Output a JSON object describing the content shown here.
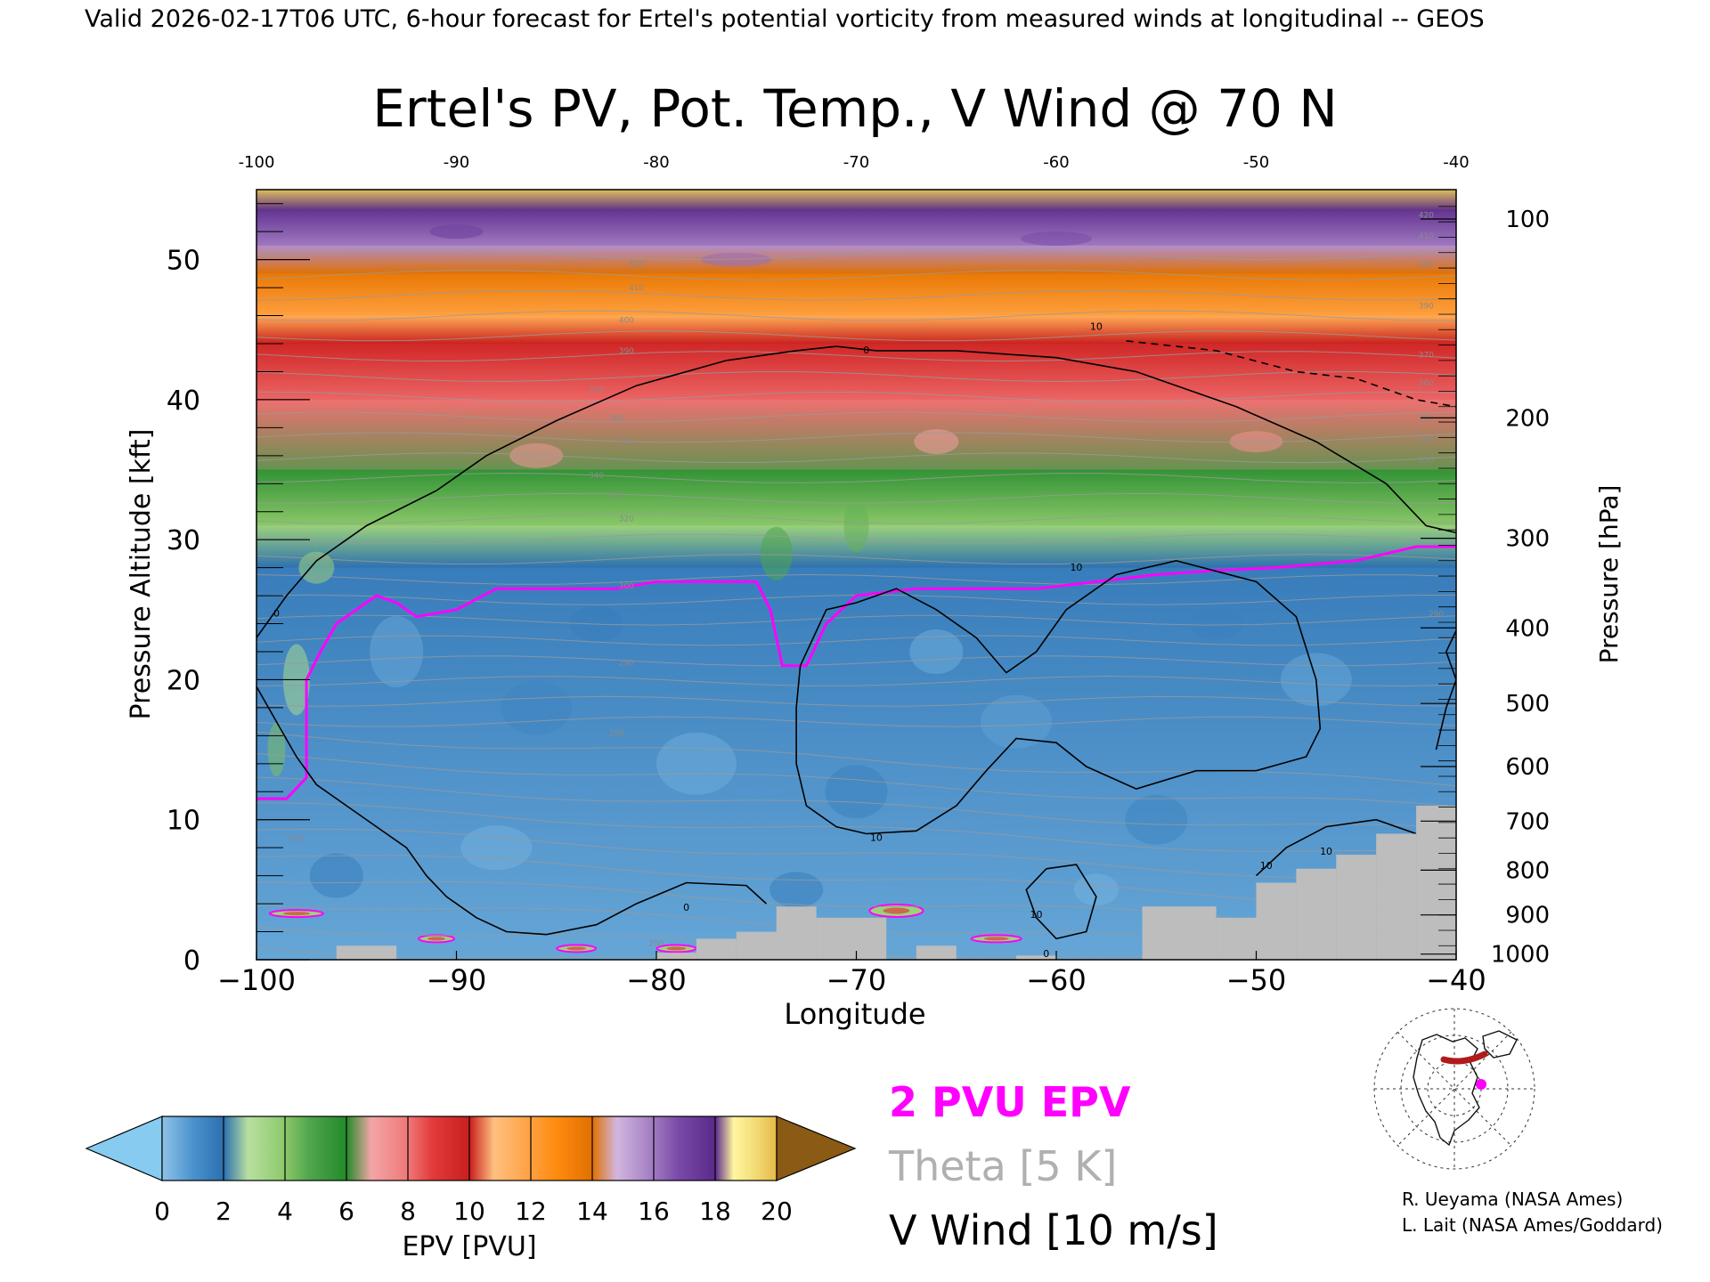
{
  "header": {
    "valid_line": "Valid 2026-02-17T06 UTC, 6-hour forecast for Ertel's potential vorticity from measured winds at longitudinal -- GEOS"
  },
  "chart_data": {
    "type": "heatmap",
    "title": "Ertel's PV, Pot. Temp., V Wind @ 70 N",
    "xlabel": "Longitude",
    "ylabel_left": "Pressure Altitude [kft]",
    "ylabel_right": "Pressure [hPa]",
    "xlim": [
      -100,
      -40
    ],
    "ylim": [
      0,
      55
    ],
    "x_ticks": [
      "-100",
      "-90",
      "-80",
      "-70",
      "-60",
      "-50",
      "-40"
    ],
    "x_ticks_bottom": [
      "−100",
      "−90",
      "−80",
      "−70",
      "−60",
      "−50",
      "−40"
    ],
    "y_ticks": [
      "0",
      "10",
      "20",
      "30",
      "40",
      "50"
    ],
    "pressure_ticks": [
      {
        "label": "100",
        "kft": 52.9
      },
      {
        "label": "200",
        "kft": 38.7
      },
      {
        "label": "300",
        "kft": 30.1
      },
      {
        "label": "400",
        "kft": 23.7
      },
      {
        "label": "500",
        "kft": 18.3
      },
      {
        "label": "600",
        "kft": 13.8
      },
      {
        "label": "700",
        "kft": 9.9
      },
      {
        "label": "800",
        "kft": 6.4
      },
      {
        "label": "900",
        "kft": 3.2
      },
      {
        "label": "1000",
        "kft": 0.4
      }
    ],
    "epv_bands": [
      {
        "kft_top": 55,
        "kft_bot": 53.5,
        "epv": 19
      },
      {
        "kft_top": 53.5,
        "kft_bot": 51,
        "epv": 17
      },
      {
        "kft_top": 51,
        "kft_bot": 49,
        "epv": 15
      },
      {
        "kft_top": 49,
        "kft_bot": 46,
        "epv": 13
      },
      {
        "kft_top": 46,
        "kft_bot": 44,
        "epv": 11
      },
      {
        "kft_top": 44,
        "kft_bot": 40,
        "epv": 9
      },
      {
        "kft_top": 40,
        "kft_bot": 35,
        "epv": 7.5
      },
      {
        "kft_top": 35,
        "kft_bot": 31,
        "epv": 5
      },
      {
        "kft_top": 31,
        "kft_bot": 28,
        "epv": 3
      },
      {
        "kft_top": 28,
        "kft_bot": 0,
        "epv": 1
      }
    ],
    "two_pvu_line": [
      [
        -100,
        11.5
      ],
      [
        -98.5,
        11.5
      ],
      [
        -97.5,
        13
      ],
      [
        -97.5,
        20
      ],
      [
        -96.8,
        22
      ],
      [
        -96,
        24
      ],
      [
        -94,
        26
      ],
      [
        -93,
        25.5
      ],
      [
        -92,
        24.5
      ],
      [
        -90,
        25
      ],
      [
        -88,
        26.5
      ],
      [
        -85,
        26.5
      ],
      [
        -82,
        26.5
      ],
      [
        -80,
        27
      ],
      [
        -78,
        27
      ],
      [
        -75,
        27
      ],
      [
        -74.3,
        25
      ],
      [
        -73.7,
        21
      ],
      [
        -72.5,
        21
      ],
      [
        -71.5,
        24
      ],
      [
        -70,
        26
      ],
      [
        -67,
        26.5
      ],
      [
        -65,
        26.5
      ],
      [
        -63,
        26.5
      ],
      [
        -61,
        26.5
      ],
      [
        -58,
        27
      ],
      [
        -55,
        27.5
      ],
      [
        -52,
        27.8
      ],
      [
        -49,
        28
      ],
      [
        -45,
        28.5
      ],
      [
        -42,
        29.5
      ],
      [
        -40,
        29.5
      ]
    ],
    "theta_labels": [
      {
        "label": "420",
        "x": -81,
        "kft": 49.5
      },
      {
        "label": "410",
        "x": -81,
        "kft": 47.8
      },
      {
        "label": "400",
        "x": -81.5,
        "kft": 45.5
      },
      {
        "label": "390",
        "x": -81.5,
        "kft": 43.3
      },
      {
        "label": "370",
        "x": -83,
        "kft": 40.5
      },
      {
        "label": "360",
        "x": -82,
        "kft": 38.5
      },
      {
        "label": "350",
        "x": -81.5,
        "kft": 36.8
      },
      {
        "label": "340",
        "x": -83,
        "kft": 34.4
      },
      {
        "label": "330",
        "x": -82,
        "kft": 33.0
      },
      {
        "label": "320",
        "x": -81.5,
        "kft": 31.3
      },
      {
        "label": "300",
        "x": -81.5,
        "kft": 26.5
      },
      {
        "label": "290",
        "x": -81.5,
        "kft": 21.0
      },
      {
        "label": "280",
        "x": -82,
        "kft": 16.0
      },
      {
        "label": "260",
        "x": -98,
        "kft": 8.5
      },
      {
        "label": "250",
        "x": -80,
        "kft": 1.0
      },
      {
        "label": "290",
        "x": -41,
        "kft": 24.5
      },
      {
        "label": "370",
        "x": -41.5,
        "kft": 43.0
      },
      {
        "label": "360",
        "x": -41.5,
        "kft": 41.0
      },
      {
        "label": "350",
        "x": -41.5,
        "kft": 38.5
      },
      {
        "label": "340",
        "x": -41.5,
        "kft": 37.0
      },
      {
        "label": "330",
        "x": -41.5,
        "kft": 35.5
      },
      {
        "label": "420",
        "x": -41.5,
        "kft": 53.0
      },
      {
        "label": "410",
        "x": -41.5,
        "kft": 51.5
      },
      {
        "label": "400",
        "x": -41.5,
        "kft": 49.5
      },
      {
        "label": "390",
        "x": -41.5,
        "kft": 46.5
      }
    ],
    "vwind_labels": [
      {
        "label": "0",
        "x": -69.5,
        "kft": 43.3
      },
      {
        "label": "0",
        "x": -99,
        "kft": 24.5
      },
      {
        "label": "0",
        "x": -78.5,
        "kft": 3.5
      },
      {
        "label": "0",
        "x": -60.5,
        "kft": 0.2
      },
      {
        "label": "10",
        "x": -58,
        "kft": 45.0
      },
      {
        "label": "10",
        "x": -59,
        "kft": 27.8
      },
      {
        "label": "10",
        "x": -69,
        "kft": 8.5
      },
      {
        "label": "10",
        "x": -61,
        "kft": 3.0
      },
      {
        "label": "10",
        "x": -49.5,
        "kft": 6.5
      },
      {
        "label": "10",
        "x": -46.5,
        "kft": 7.5
      }
    ],
    "colorbar": {
      "label": "EPV [PVU]",
      "ticks": [
        "0",
        "2",
        "4",
        "6",
        "8",
        "10",
        "12",
        "14",
        "16",
        "18",
        "20"
      ],
      "under_color": "#87cbf0",
      "over_color": "#8b5a14"
    },
    "legend": {
      "epv_line": "2 PVU EPV",
      "theta": "Theta [5 K]",
      "vwind": "V Wind [10 m/s]",
      "colors": {
        "epv_line": "#ff00ff",
        "theta": "#b0b0b0",
        "vwind": "#000000"
      }
    }
  },
  "credits": {
    "line1": "R. Ueyama (NASA Ames)",
    "line2": "L. Lait (NASA Ames/Goddard)"
  }
}
